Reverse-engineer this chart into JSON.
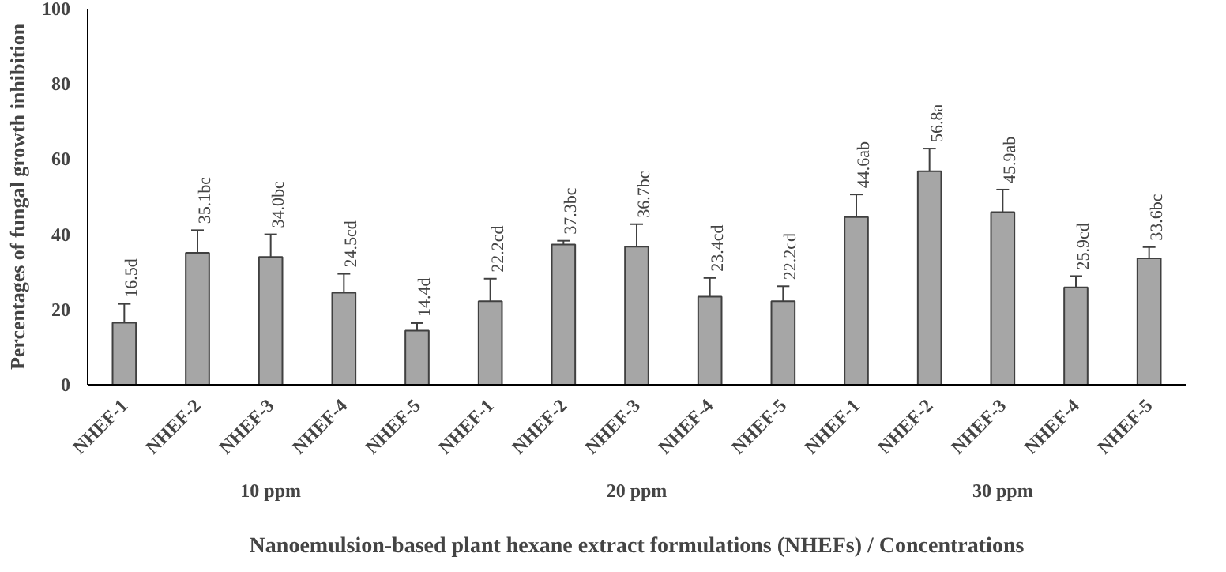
{
  "chart_data": {
    "type": "bar",
    "xlabel": "Nanoemulsion-based plant hexane extract formulations (NHEFs) / Concentrations",
    "ylabel": "Percentages of fungal growth inhibition",
    "categories": [
      "NHEF-1",
      "NHEF-2",
      "NHEF-3",
      "NHEF-4",
      "NHEF-5",
      "NHEF-1",
      "NHEF-2",
      "NHEF-3",
      "NHEF-4",
      "NHEF-5",
      "NHEF-1",
      "NHEF-2",
      "NHEF-3",
      "NHEF-4",
      "NHEF-5"
    ],
    "values": [
      16.5,
      35.1,
      34.0,
      24.5,
      14.4,
      22.2,
      37.3,
      36.7,
      23.4,
      22.2,
      44.6,
      56.8,
      45.9,
      25.9,
      33.6
    ],
    "errors": [
      5,
      6,
      6,
      5,
      2,
      6,
      1,
      6,
      5,
      4,
      6,
      6,
      6,
      3,
      3
    ],
    "value_labels": [
      "16.5d",
      "35.1bc",
      "34.0bc",
      "24.5cd",
      "14.4d",
      "22.2cd",
      "37.3bc",
      "36.7bc",
      "23.4cd",
      "22.2cd",
      "44.6ab",
      "56.8a",
      "45.9ab",
      "25.9cd",
      "33.6bc"
    ],
    "color": "#a6a6a6",
    "annotations": [
      "10 ppm",
      "20 ppm",
      "30 ppm"
    ],
    "ylim": [
      0,
      100
    ],
    "yticks": [
      0,
      20,
      40,
      60,
      80,
      100
    ],
    "grid": false
  }
}
